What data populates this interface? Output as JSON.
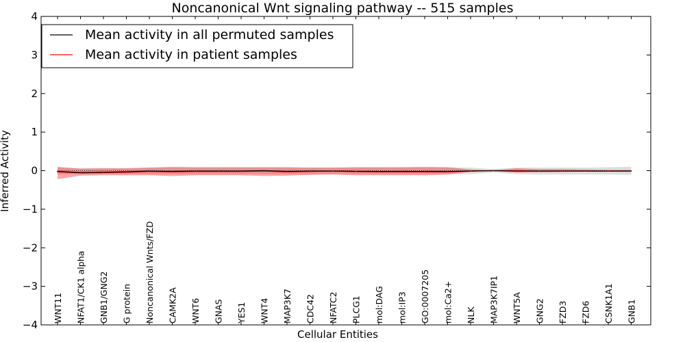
{
  "chart_data": {
    "type": "line",
    "title": "Noncanonical Wnt signaling pathway -- 515 samples",
    "xlabel": "Cellular Entities",
    "ylabel": "Inferred Activity",
    "ylim": [
      -4,
      4
    ],
    "yticks": [
      -4,
      -3,
      -2,
      -1,
      0,
      1,
      2,
      3,
      4
    ],
    "ytick_labels": [
      "−4",
      "−3",
      "−2",
      "−1",
      "0",
      "1",
      "2",
      "3",
      "4"
    ],
    "grid": false,
    "legend_position": "top-left",
    "categories": [
      "WNT11",
      "NFAT1/CK1 alpha",
      "GNB1/GNG2",
      "G protein",
      "Noncanonical Wnts/FZD",
      "CAMK2A",
      "WNT6",
      "GNAS",
      "YES1",
      "WNT4",
      "MAP3K7",
      "CDC42",
      "NFATC2",
      "PLCG1",
      "mol:DAG",
      "mol:IP3",
      "GO:0007205",
      "mol:Ca2+",
      "NLK",
      "MAP3K7IP1",
      "WNT5A",
      "GNG2",
      "FZD3",
      "FZD6",
      "CSNK1A1",
      "GNB1"
    ],
    "series": [
      {
        "name": "Mean activity in all permuted samples",
        "color": "#000000",
        "values": [
          -0.02,
          -0.05,
          -0.04,
          -0.03,
          -0.01,
          -0.02,
          -0.01,
          -0.01,
          -0.01,
          0.0,
          -0.02,
          -0.01,
          -0.01,
          -0.02,
          -0.02,
          -0.02,
          -0.02,
          -0.02,
          -0.01,
          0.0,
          -0.01,
          -0.01,
          -0.01,
          -0.01,
          -0.01,
          -0.01
        ],
        "band_lower": [
          -0.1,
          -0.09,
          -0.09,
          -0.09,
          -0.09,
          -0.09,
          -0.09,
          -0.09,
          -0.09,
          -0.09,
          -0.09,
          -0.09,
          -0.09,
          -0.09,
          -0.09,
          -0.09,
          -0.09,
          -0.09,
          -0.09,
          -0.05,
          -0.09,
          -0.1,
          -0.1,
          -0.1,
          -0.1,
          -0.11
        ],
        "band_upper": [
          0.08,
          0.07,
          0.07,
          0.07,
          0.08,
          0.08,
          0.08,
          0.08,
          0.08,
          0.08,
          0.08,
          0.08,
          0.08,
          0.08,
          0.08,
          0.08,
          0.08,
          0.08,
          0.08,
          0.04,
          0.08,
          0.08,
          0.08,
          0.08,
          0.09,
          0.1
        ]
      },
      {
        "name": "Mean activity in patient samples",
        "color": "#ff0000",
        "values": [
          -0.03,
          -0.06,
          -0.05,
          -0.04,
          -0.02,
          -0.03,
          -0.02,
          -0.02,
          -0.02,
          -0.01,
          -0.03,
          -0.02,
          -0.01,
          -0.02,
          -0.03,
          -0.03,
          -0.03,
          -0.03,
          -0.01,
          0.0,
          0.0,
          -0.01,
          -0.01,
          -0.01,
          -0.01,
          -0.01
        ],
        "band_lower": [
          -0.22,
          -0.13,
          -0.12,
          -0.12,
          -0.12,
          -0.14,
          -0.12,
          -0.12,
          -0.12,
          -0.14,
          -0.13,
          -0.11,
          -0.1,
          -0.12,
          -0.12,
          -0.12,
          -0.12,
          -0.1,
          -0.03,
          -0.01,
          -0.05,
          -0.04,
          -0.03,
          -0.02,
          -0.02,
          -0.02
        ],
        "band_upper": [
          0.1,
          0.05,
          0.06,
          0.06,
          0.08,
          0.1,
          0.09,
          0.09,
          0.09,
          0.09,
          0.09,
          0.08,
          0.08,
          0.09,
          0.09,
          0.09,
          0.1,
          0.09,
          0.03,
          0.01,
          0.06,
          0.04,
          0.04,
          0.03,
          0.02,
          0.02
        ]
      }
    ],
    "legend": [
      {
        "label": "Mean activity in all permuted samples",
        "color": "#000000"
      },
      {
        "label": "Mean activity in patient samples",
        "color": "#ff0000"
      }
    ]
  }
}
